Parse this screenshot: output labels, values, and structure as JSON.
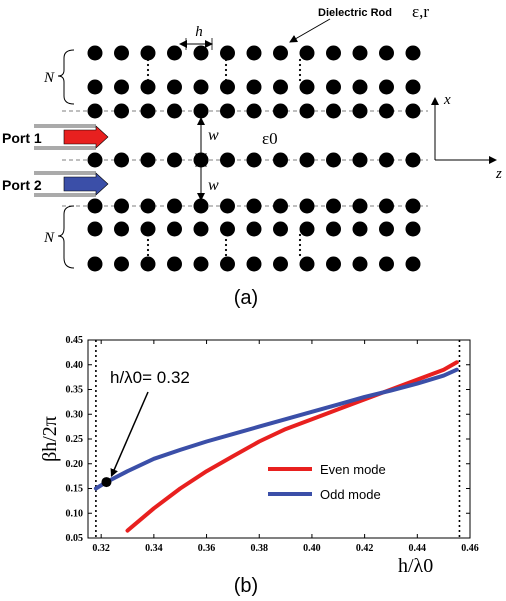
{
  "diagram": {
    "rod_label": "Dielectric Rod",
    "rod_symbols": "ε,r",
    "spacing_label": "h",
    "rows_label": "N",
    "gap_label": "w",
    "background_medium": "ε0",
    "port1_label": "Port 1",
    "port2_label": "Port 2",
    "axis_x": "x",
    "axis_z": "z",
    "caption": "(a)",
    "port1_color": "#e8201f",
    "port2_color": "#3b4fa8"
  },
  "plot": {
    "caption": "(b)",
    "annotation": "h/λ0= 0.32"
  },
  "chart_data": {
    "type": "line",
    "xlabel": "h/λ0",
    "ylabel": "βh/2π",
    "xlim": [
      0.315,
      0.46
    ],
    "ylim": [
      0.05,
      0.45
    ],
    "xticks": [
      "0.32",
      "0.34",
      "0.36",
      "0.38",
      "0.40",
      "0.42",
      "0.44",
      "0.46"
    ],
    "yticks": [
      "0.05",
      "0.10",
      "0.15",
      "0.20",
      "0.25",
      "0.30",
      "0.35",
      "0.40",
      "0.45"
    ],
    "cutoff_lines": [
      0.318,
      0.456
    ],
    "marker": {
      "x": 0.322,
      "y": 0.163
    },
    "legend_position": "center-right",
    "series": [
      {
        "name": "Even mode",
        "color": "#e8201f",
        "x": [
          0.33,
          0.34,
          0.35,
          0.36,
          0.37,
          0.38,
          0.39,
          0.4,
          0.41,
          0.42,
          0.43,
          0.44,
          0.45,
          0.455
        ],
        "y": [
          0.065,
          0.11,
          0.15,
          0.185,
          0.215,
          0.245,
          0.27,
          0.29,
          0.31,
          0.33,
          0.35,
          0.37,
          0.39,
          0.405
        ]
      },
      {
        "name": "Odd mode",
        "color": "#3b4fa8",
        "x": [
          0.318,
          0.322,
          0.33,
          0.34,
          0.35,
          0.36,
          0.37,
          0.38,
          0.39,
          0.4,
          0.41,
          0.42,
          0.43,
          0.44,
          0.45,
          0.455
        ],
        "y": [
          0.15,
          0.163,
          0.185,
          0.21,
          0.228,
          0.245,
          0.26,
          0.275,
          0.29,
          0.305,
          0.32,
          0.335,
          0.348,
          0.362,
          0.378,
          0.39
        ]
      }
    ]
  }
}
